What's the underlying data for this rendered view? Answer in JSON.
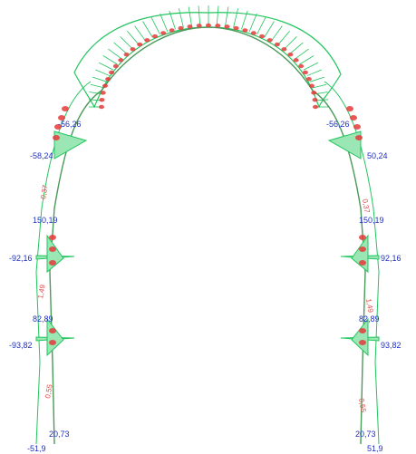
{
  "colors": {
    "diagram": "#22c55e",
    "structure": "#1aa84a",
    "values": "#1f2fbf",
    "markers": "#e63a3a",
    "background": "#ffffff"
  },
  "labels": {
    "left": {
      "crown_side": "-56,26",
      "upper_moment": "-58,24",
      "wall_upper": "150,19",
      "mid_moment": "-92,16",
      "wall_mid": "82,89",
      "low_moment": "-93,82",
      "base_top": "20,73",
      "base": "-51,9",
      "seg_a": "0,37",
      "seg_b": "1,49",
      "seg_c": "0,55"
    },
    "right": {
      "crown_side": "-56,26",
      "upper_moment": "50,24",
      "wall_upper": "150,19",
      "mid_moment": "92,16",
      "wall_mid": "82,89",
      "low_moment": "93,82",
      "base_top": "20,73",
      "base": "51,9",
      "seg_a": "0,37",
      "seg_b": "1,49",
      "seg_c": "0,55"
    }
  }
}
